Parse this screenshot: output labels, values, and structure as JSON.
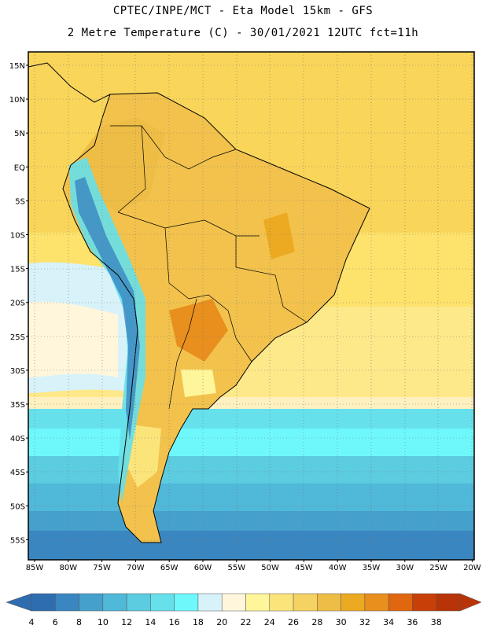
{
  "header": {
    "line1": "CPTEC/INPE/MCT -  Eta Model 15km - GFS",
    "line2": "2 Metre Temperature (C) - 30/01/2021 12UTC fct=11h"
  },
  "lat_labels": [
    "15N",
    "10N",
    "5N",
    "EQ",
    "5S",
    "10S",
    "15S",
    "20S",
    "25S",
    "30S",
    "35S",
    "40S",
    "45S",
    "50S",
    "55S"
  ],
  "lon_labels": [
    "85W",
    "80W",
    "75W",
    "70W",
    "65W",
    "60W",
    "55W",
    "50W",
    "45W",
    "40W",
    "35W",
    "30W",
    "25W",
    "20W"
  ],
  "colorbar": {
    "labels": [
      "4",
      "6",
      "8",
      "10",
      "12",
      "14",
      "16",
      "18",
      "20",
      "22",
      "24",
      "26",
      "28",
      "30",
      "32",
      "34",
      "36",
      "38"
    ],
    "colors": [
      "#2e6db0",
      "#3a86c0",
      "#45a0cc",
      "#50b8d8",
      "#5ccce0",
      "#66e0ea",
      "#6ff8fc",
      "#d8f2fa",
      "#fff6dc",
      "#fff59a",
      "#fbe57a",
      "#f5d262",
      "#eebd46",
      "#ecaa22",
      "#e88f1e",
      "#e06610",
      "#c84008",
      "#b83408"
    ]
  }
}
